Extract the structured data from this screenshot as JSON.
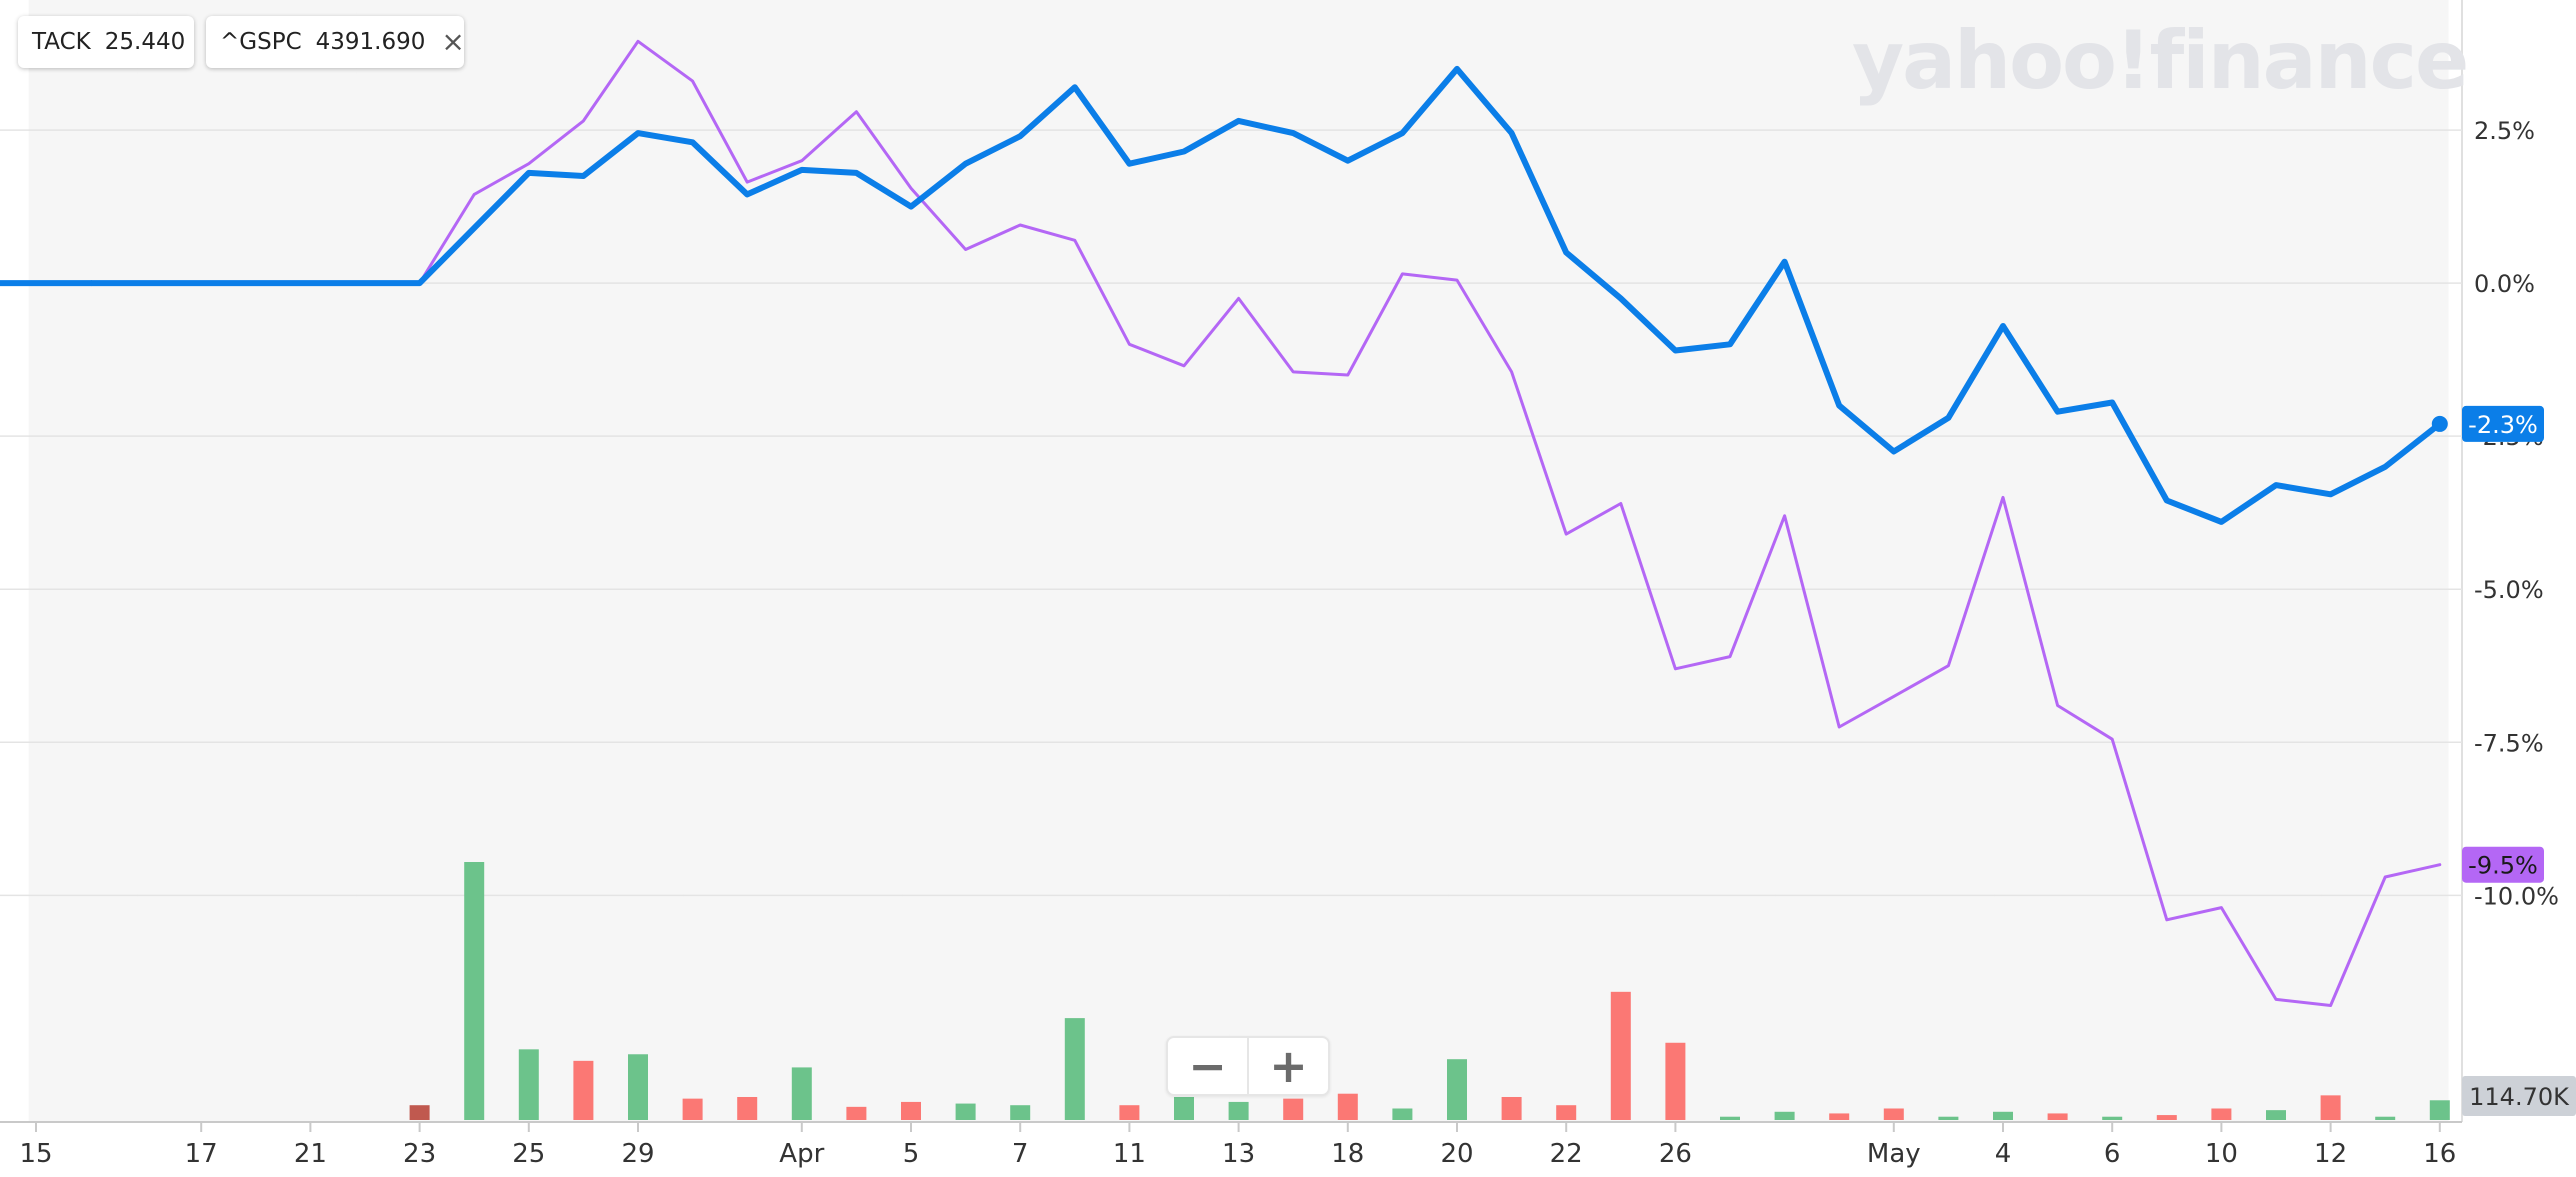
{
  "watermark": "yahoo!finance",
  "legend": [
    {
      "symbol": "TACK",
      "value": "25.440",
      "color": "#0b7ee8",
      "closable": false
    },
    {
      "symbol": "^GSPC",
      "value": "4391.690",
      "color": "#b467f5",
      "closable": true,
      "close_icon": "close-icon"
    }
  ],
  "zoom": {
    "out_label": "−",
    "in_label": "+"
  },
  "chart_data": {
    "type": "line",
    "x": [
      "Mar 15",
      "Mar 16",
      "Mar 17",
      "Mar 18",
      "Mar 21",
      "Mar 22",
      "Mar 23",
      "Mar 24",
      "Mar 25",
      "Mar 28",
      "Mar 29",
      "Mar 30",
      "Mar 31",
      "Apr 1",
      "Apr 4",
      "Apr 5",
      "Apr 6",
      "Apr 7",
      "Apr 8",
      "Apr 11",
      "Apr 12",
      "Apr 13",
      "Apr 14",
      "Apr 18",
      "Apr 19",
      "Apr 20",
      "Apr 21",
      "Apr 22",
      "Apr 25",
      "Apr 26",
      "Apr 27",
      "Apr 28",
      "Apr 29",
      "May 2",
      "May 3",
      "May 4",
      "May 5",
      "May 6",
      "May 9",
      "May 10",
      "May 11",
      "May 12",
      "May 13",
      "May 16"
    ],
    "x_tick_labels": [
      {
        "x": "Mar 15",
        "label": "15"
      },
      {
        "x": "Mar 17",
        "label": "17"
      },
      {
        "x": "Mar 21",
        "label": "21"
      },
      {
        "x": "Mar 23",
        "label": "23"
      },
      {
        "x": "Mar 25",
        "label": "25"
      },
      {
        "x": "Mar 29",
        "label": "29"
      },
      {
        "x": "Apr 1",
        "label": "Apr"
      },
      {
        "x": "Apr 5",
        "label": "5"
      },
      {
        "x": "Apr 7",
        "label": "7"
      },
      {
        "x": "Apr 11",
        "label": "11"
      },
      {
        "x": "Apr 13",
        "label": "13"
      },
      {
        "x": "Apr 18",
        "label": "18"
      },
      {
        "x": "Apr 20",
        "label": "20"
      },
      {
        "x": "Apr 22",
        "label": "22"
      },
      {
        "x": "Apr 26",
        "label": "26"
      },
      {
        "x": "May 2",
        "label": "May"
      },
      {
        "x": "May 4",
        "label": "4"
      },
      {
        "x": "May 6",
        "label": "6"
      },
      {
        "x": "May 10",
        "label": "10"
      },
      {
        "x": "May 12",
        "label": "12"
      },
      {
        "x": "May 16",
        "label": "16"
      }
    ],
    "ylim": [
      -12.2,
      4.2
    ],
    "y_ticks": [
      2.5,
      0,
      -2.5,
      -5,
      -7.5,
      -10
    ],
    "y_tick_labels": [
      "2.5%",
      "0.0%",
      "-2.5%",
      "-5.0%",
      "-7.5%",
      "-10.0%"
    ],
    "grid": true,
    "series": [
      {
        "name": "TACK",
        "color": "#0b7ee8",
        "end_label": "-2.3%",
        "values": [
          0,
          0,
          0,
          0,
          0,
          0,
          0,
          0.9,
          1.8,
          1.75,
          2.45,
          2.3,
          1.45,
          1.85,
          1.8,
          1.25,
          1.95,
          2.4,
          3.2,
          1.95,
          2.15,
          2.65,
          2.45,
          2.0,
          2.45,
          3.5,
          2.45,
          0.5,
          -0.25,
          -1.1,
          -1.0,
          0.35,
          -2.0,
          -2.75,
          -2.2,
          -0.7,
          -2.1,
          -1.95,
          -3.55,
          -3.9,
          -3.3,
          -3.45,
          -3.0,
          -2.3
        ]
      },
      {
        "name": "^GSPC",
        "color": "#b467f5",
        "end_label": "-9.5%",
        "values": [
          0,
          0,
          0,
          0,
          0,
          0,
          0,
          1.45,
          1.95,
          2.65,
          3.95,
          3.3,
          1.65,
          2.0,
          2.8,
          1.55,
          0.55,
          0.95,
          0.7,
          -1.0,
          -1.35,
          -0.25,
          -1.45,
          -1.5,
          0.15,
          0.05,
          -1.45,
          -4.1,
          -3.6,
          -6.3,
          -6.1,
          -3.8,
          -7.25,
          -6.75,
          -6.25,
          -3.5,
          -6.9,
          -7.45,
          -10.4,
          -10.2,
          -11.7,
          -11.8,
          -9.7,
          -9.5
        ]
      }
    ],
    "volume": {
      "label": "114.70K",
      "values": [
        0,
        0,
        0,
        0,
        0,
        0,
        9,
        157,
        43,
        36,
        40,
        13,
        14,
        32,
        8,
        11,
        10,
        9,
        62,
        9,
        14,
        11,
        13,
        16,
        7,
        37,
        14,
        9,
        78,
        47,
        2,
        5,
        4,
        7,
        2,
        5,
        4,
        2,
        3,
        7,
        6,
        15,
        2,
        12
      ],
      "up": [
        null,
        null,
        null,
        null,
        null,
        null,
        false,
        true,
        true,
        false,
        true,
        false,
        false,
        true,
        false,
        false,
        true,
        true,
        true,
        false,
        true,
        true,
        false,
        false,
        true,
        true,
        false,
        false,
        false,
        false,
        true,
        true,
        false,
        false,
        true,
        true,
        false,
        true,
        false,
        false,
        true,
        false,
        true,
        true
      ]
    }
  }
}
